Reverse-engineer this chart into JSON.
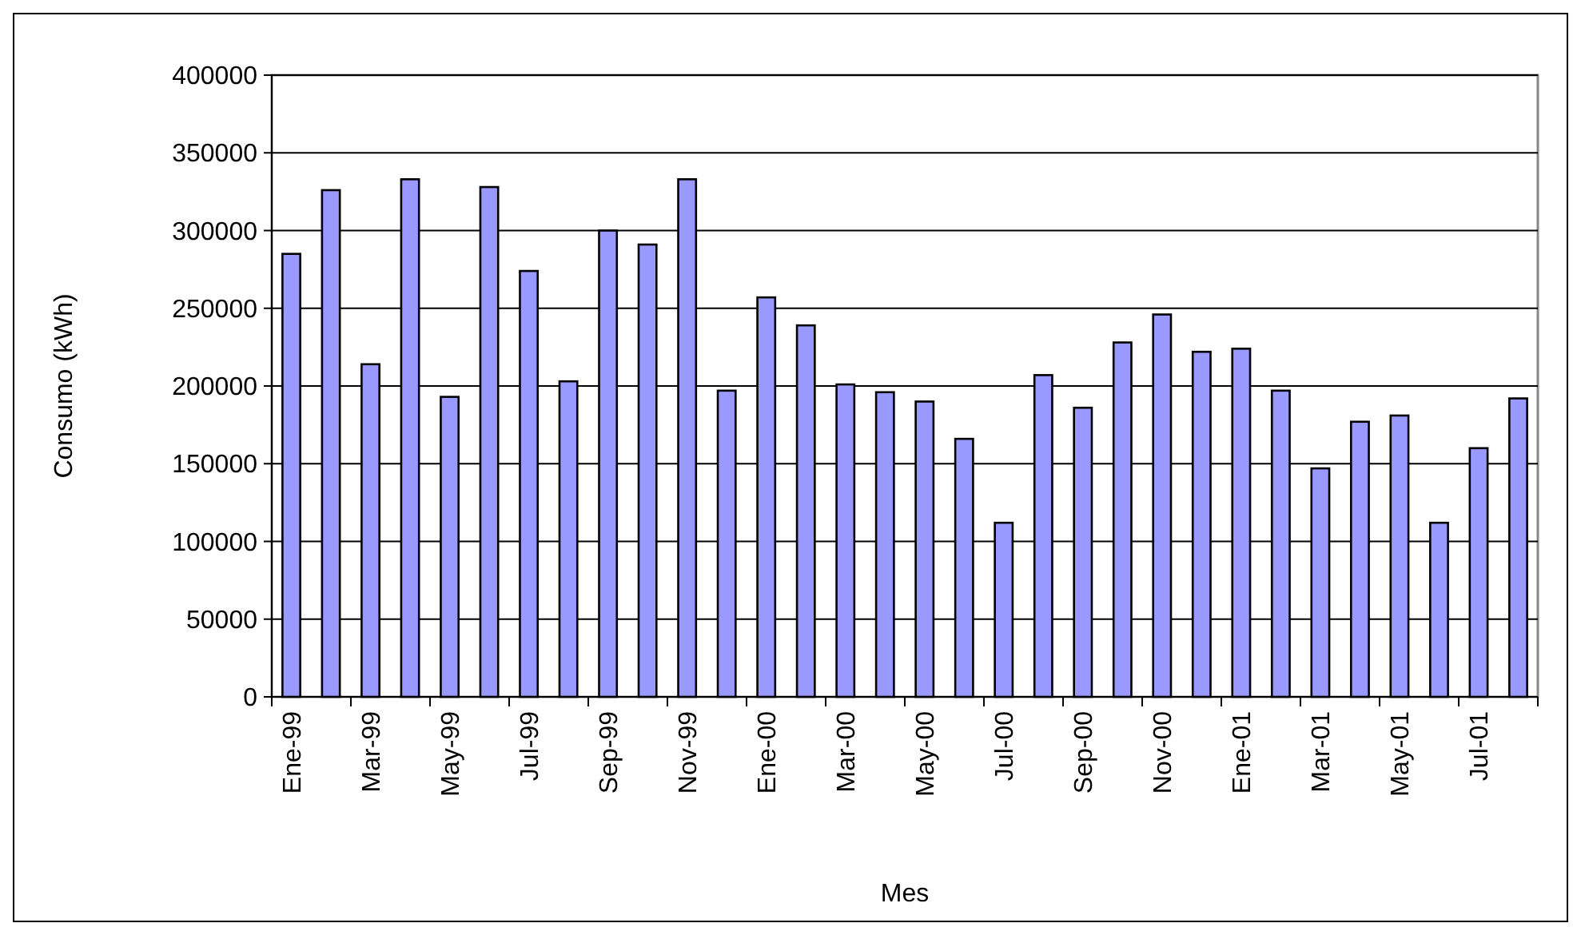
{
  "chart_data": {
    "type": "bar",
    "xlabel": "Mes",
    "ylabel": "Consumo (kWh)",
    "categories": [
      "Ene-99",
      null,
      "Mar-99",
      null,
      "May-99",
      null,
      "Jul-99",
      null,
      "Sep-99",
      null,
      "Nov-99",
      null,
      "Ene-00",
      null,
      "Mar-00",
      null,
      "May-00",
      null,
      "Jul-00",
      null,
      "Sep-00",
      null,
      "Nov-00",
      null,
      "Ene-01",
      null,
      "Mar-01",
      null,
      "May-01",
      null,
      "Jul-01",
      null
    ],
    "values": [
      285000,
      326000,
      214000,
      333000,
      193000,
      328000,
      274000,
      203000,
      300000,
      291000,
      333000,
      197000,
      257000,
      239000,
      201000,
      196000,
      190000,
      166000,
      112000,
      207000,
      186000,
      228000,
      246000,
      222000,
      224000,
      197000,
      147000,
      177000,
      181000,
      112000,
      160000,
      192000
    ],
    "color": "#9999ff",
    "ylim": [
      0,
      400000
    ],
    "yticks": [
      0,
      50000,
      100000,
      150000,
      200000,
      250000,
      300000,
      350000,
      400000
    ],
    "grid": "y"
  }
}
